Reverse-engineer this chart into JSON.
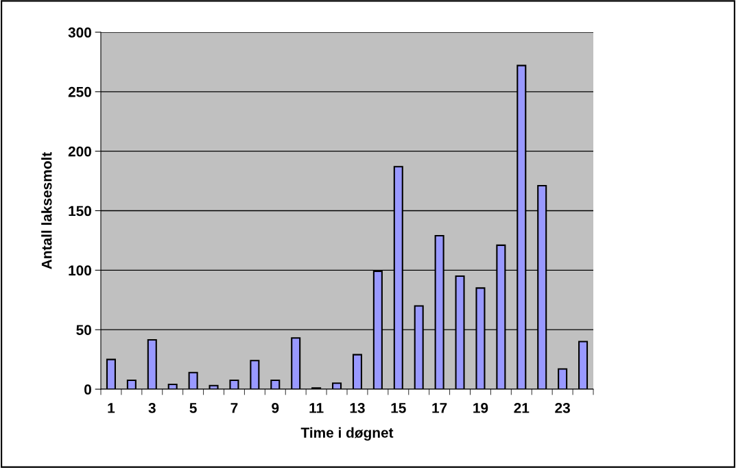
{
  "chart_data": {
    "type": "bar",
    "xlabel": "Time i døgnet",
    "ylabel": "Antall laksesmolt",
    "categories": [
      "1",
      null,
      "3",
      null,
      "5",
      null,
      "7",
      null,
      "9",
      null,
      "11",
      null,
      "13",
      null,
      "15",
      null,
      "17",
      null,
      "19",
      null,
      "21",
      null,
      "23",
      null
    ],
    "values": [
      25,
      7.5,
      41.5,
      4,
      14,
      3,
      7.5,
      24,
      7.5,
      43,
      1,
      5,
      29,
      99,
      187,
      70,
      129,
      95,
      85,
      121,
      272,
      171,
      17,
      40
    ],
    "color": "#9999ff",
    "ylim": [
      0,
      300
    ],
    "yticks": [
      0,
      50,
      100,
      150,
      200,
      250,
      300
    ],
    "grid": "y",
    "legend": false
  }
}
